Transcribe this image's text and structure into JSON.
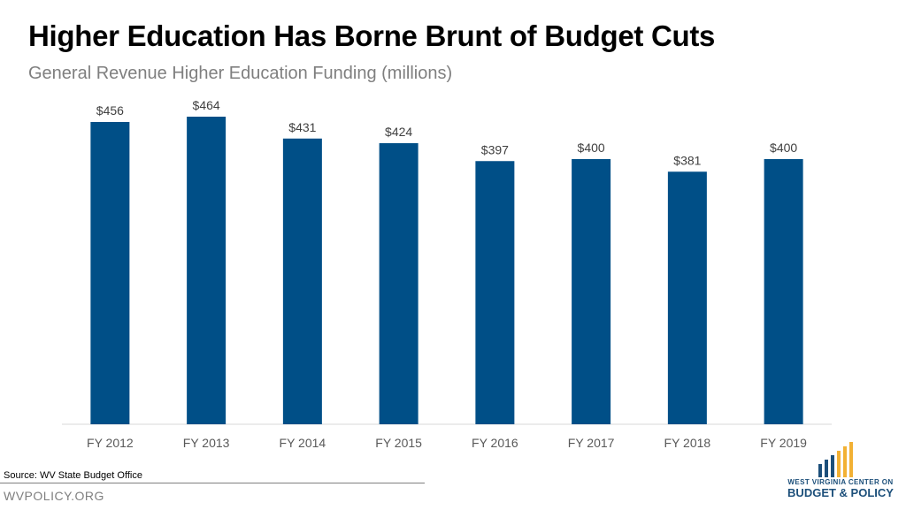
{
  "header": {
    "title": "Higher Education Has Borne Brunt of Budget Cuts",
    "subtitle": "General Revenue Higher Education Funding (millions)"
  },
  "footer": {
    "source": "Source: WV State Budget Office",
    "site": "WVPOLICY.ORG"
  },
  "logo": {
    "line1": "WEST VIRGINIA CENTER ON",
    "line2": "BUDGET & POLICY",
    "colors": {
      "navy": "#1c4f7a",
      "gold": "#f2b134"
    }
  },
  "chart_data": {
    "type": "bar",
    "categories": [
      "FY 2012",
      "FY 2013",
      "FY 2014",
      "FY 2015",
      "FY 2016",
      "FY 2017",
      "FY 2018",
      "FY 2019"
    ],
    "values": [
      456,
      464,
      431,
      424,
      397,
      400,
      381,
      400
    ],
    "data_labels": [
      "$456",
      "$464",
      "$431",
      "$424",
      "$397",
      "$400",
      "$381",
      "$400"
    ],
    "title": "Higher Education Has Borne Brunt of Budget Cuts",
    "subtitle": "General Revenue Higher Education Funding (millions)",
    "xlabel": "",
    "ylabel": "",
    "ylim": [
      0,
      480
    ],
    "grid": false,
    "bar_color": "#004f87",
    "axis_color": "#d9d9d9"
  }
}
